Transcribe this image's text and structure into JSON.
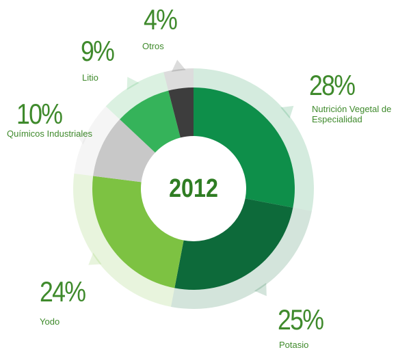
{
  "chart_data": {
    "type": "pie",
    "center_label": "2012",
    "categories": [
      "Nutrición Vegetal de Especialidad",
      "Potasio",
      "Yodo",
      "Químicos Industriales",
      "Litio",
      "Otros"
    ],
    "values": [
      28,
      25,
      24,
      10,
      9,
      4
    ],
    "value_labels": [
      "28%",
      "25%",
      "24%",
      "10%",
      "9%",
      "4%"
    ],
    "colors": [
      "#0e8f4a",
      "#0d6a3a",
      "#7dc242",
      "#c8c8c8",
      "#35b35a",
      "#3d3d3d"
    ]
  }
}
